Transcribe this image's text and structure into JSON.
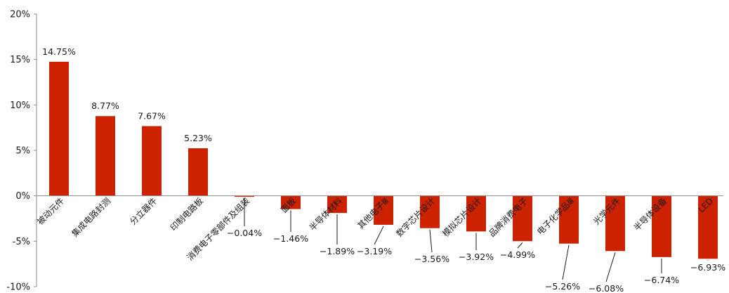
{
  "chart_data": {
    "type": "bar",
    "title": "",
    "xlabel": "",
    "ylabel": "",
    "ylim": [
      -10,
      20
    ],
    "yticks": [
      "20%",
      "15%",
      "10%",
      "5%",
      "0%",
      "-5%",
      "-10%"
    ],
    "yticks_values": [
      20,
      15,
      10,
      5,
      0,
      -5,
      -10
    ],
    "grid": false,
    "bar_color": "#cc2200",
    "categories": [
      "被动元件",
      "集成电路封测",
      "分立器件",
      "印制电路板",
      "消费电子零部件及组装",
      "面板",
      "半导体材料",
      "其他电子Ⅲ",
      "数字芯片设计",
      "模拟芯片设计",
      "品牌消费电子",
      "电子化学品Ⅲ",
      "光学元件",
      "半导体设备",
      "LED"
    ],
    "values": [
      14.75,
      8.77,
      7.67,
      5.23,
      -0.04,
      -1.46,
      -1.89,
      -3.19,
      -3.56,
      -3.92,
      -4.99,
      -5.26,
      -6.08,
      -6.74,
      -6.93
    ],
    "value_labels": [
      "14.75%",
      "8.77%",
      "7.67%",
      "5.23%",
      "−0.04%",
      "−1.46%",
      "−1.89%",
      "−3.19%",
      "−3.56%",
      "−3.92%",
      "−4.99%",
      "−5.26%",
      "−6.08%",
      "−6.74%",
      "−6.93%"
    ]
  }
}
